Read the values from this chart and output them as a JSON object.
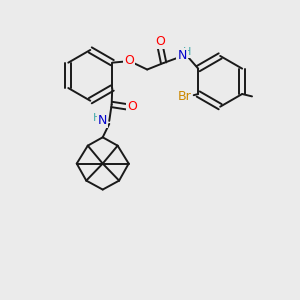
{
  "background_color": "#ebebeb",
  "bond_color": "#1a1a1a",
  "atom_colors": {
    "O": "#ff0000",
    "N": "#0000cc",
    "Br": "#cc8800",
    "H": "#44aaaa",
    "C": "#1a1a1a"
  },
  "figsize": [
    3.0,
    3.0
  ],
  "dpi": 100,
  "lw": 1.4
}
